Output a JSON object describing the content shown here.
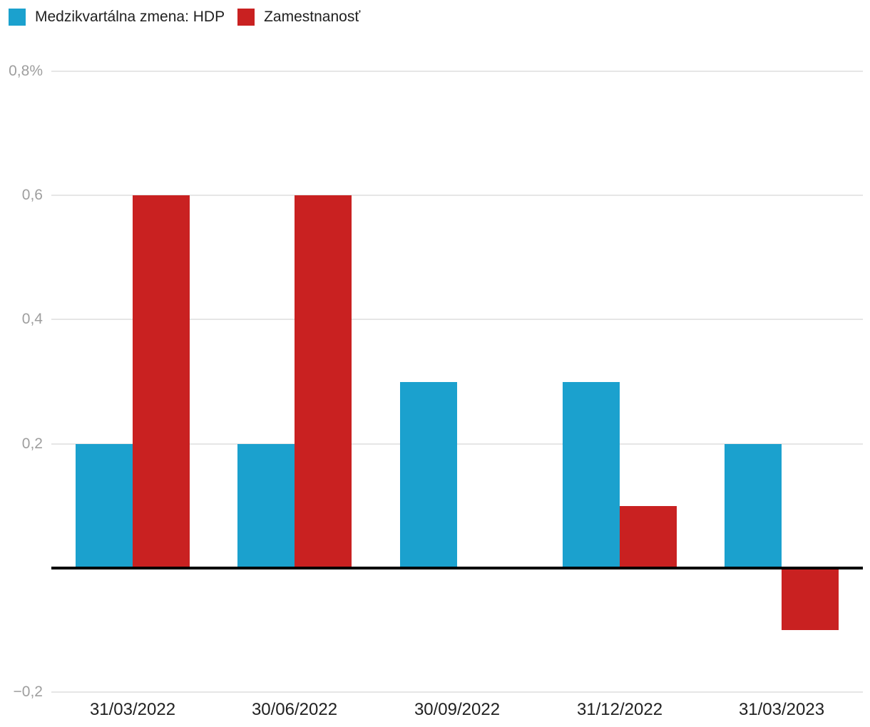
{
  "colors": {
    "hdp_blue": "#1BA1CE",
    "employment_red": "#C92121",
    "gridline": "#E6E6E6",
    "zero_axis": "#000000",
    "y_label": "#9E9E9E",
    "x_label": "#212121",
    "legend_text": "#212121",
    "background": "#FFFFFF"
  },
  "legend": {
    "items": [
      {
        "label": "Medzikvartálna zmena: HDP",
        "color": "#1BA1CE"
      },
      {
        "label": "Zamestnanosť",
        "color": "#C92121"
      }
    ]
  },
  "chart_data": {
    "type": "bar",
    "categories": [
      "31/03/2022",
      "30/06/2022",
      "30/09/2022",
      "31/12/2022",
      "31/03/2023"
    ],
    "series": [
      {
        "name": "Medzikvartálna zmena: HDP",
        "color": "#1BA1CE",
        "values": [
          0.2,
          0.2,
          0.3,
          0.3,
          0.2
        ]
      },
      {
        "name": "Zamestnanosť",
        "color": "#C92121",
        "values": [
          0.6,
          0.6,
          0,
          0.1,
          -0.1
        ]
      }
    ],
    "title": "",
    "xlabel": "",
    "ylabel": "",
    "unit": "%",
    "ylim": [
      -0.2,
      0.8
    ],
    "yticks": [
      {
        "value": 0.8,
        "label": "0,8%"
      },
      {
        "value": 0.6,
        "label": "0,6"
      },
      {
        "value": 0.4,
        "label": "0,4"
      },
      {
        "value": 0.2,
        "label": "0,2"
      },
      {
        "value": -0.2,
        "label": "−0,2"
      }
    ],
    "grid": true,
    "legend_position": "top-left"
  }
}
